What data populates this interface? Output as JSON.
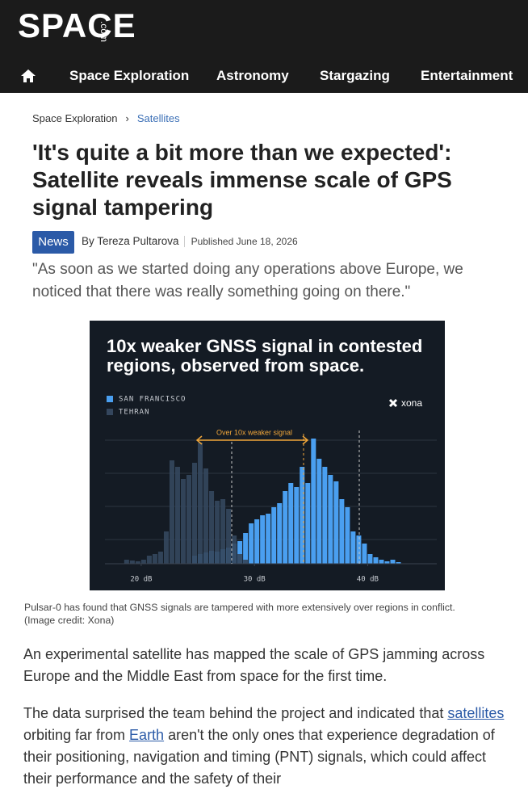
{
  "header": {
    "logo": "SPACE",
    "logo_suffix": ".com",
    "nav": [
      "Space Exploration",
      "Astronomy",
      "Stargazing",
      "Entertainment"
    ]
  },
  "breadcrumb": [
    "Space Exploration",
    "Satellites"
  ],
  "article": {
    "title": "'It's quite a bit more than we expected': Satellite reveals immense scale of GPS signal tampering",
    "tag": "News",
    "author": "By Tereza Pultarova",
    "published": "Published June 18, 2026",
    "standfirst": "\"As soon as we started doing any operations above Europe, we noticed that there was really something going on there.\"",
    "figure": {
      "chart_data": {
        "type": "histogram",
        "title": "10x weaker GNSS signal in contested regions, observed from space.",
        "brand": "xona",
        "annotation": "Over 10x weaker signal",
        "bins": [
          18,
          18.5,
          19,
          19.5,
          20,
          20.5,
          21,
          21.5,
          22,
          22.5,
          23,
          23.5,
          24,
          24.5,
          25,
          25.5,
          26,
          26.5,
          27,
          27.5,
          28,
          28.5,
          29,
          29.5,
          30,
          30.5,
          31,
          31.5,
          32,
          32.5,
          33,
          33.5,
          34,
          34.5,
          35,
          35.5,
          36,
          36.5,
          37,
          37.5,
          38,
          38.5,
          39,
          39.5,
          40,
          40.5,
          41,
          41.5,
          42,
          42.5,
          43,
          43.5
        ],
        "series": [
          {
            "name": "SAN FRANCISCO",
            "color": "#4a9ff0",
            "values": [
              0,
              0,
              0,
              0,
              0,
              0,
              0,
              0,
              0,
              0,
              0,
              0,
              0,
              10,
              12,
              14,
              16,
              15,
              18,
              20,
              25,
              28,
              38,
              50,
              55,
              60,
              62,
              70,
              75,
              90,
              100,
              95,
              120,
              100,
              155,
              130,
              120,
              110,
              102,
              80,
              70,
              40,
              35,
              25,
              12,
              8,
              5,
              3,
              5,
              2,
              0
            ]
          },
          {
            "name": "TEHRAN",
            "color": "#34465d",
            "values": [
              0,
              5,
              4,
              3,
              5,
              10,
              12,
              15,
              40,
              128,
              120,
              105,
              110,
              125,
              150,
              118,
              90,
              78,
              80,
              68,
              35,
              12,
              5,
              0,
              0,
              0,
              0,
              0,
              0,
              0,
              0,
              0,
              0,
              0,
              0,
              0,
              0,
              0,
              0,
              0,
              0,
              0,
              0,
              0,
              0,
              0,
              0,
              0,
              0,
              0,
              0
            ]
          }
        ],
        "xlim": [
          16.8,
          46.1
        ],
        "xticks": [
          {
            "value": 20,
            "label": "20 dB"
          },
          {
            "value": 30,
            "label": "30 dB"
          },
          {
            "value": 40,
            "label": "40 dB"
          }
        ]
      },
      "caption": "Pulsar-0 has found that GNSS signals are tampered with more extensively over regions in conflict.",
      "credit": "(Image credit: Xona)"
    },
    "paragraphs": [
      [
        "An experimental satellite has mapped the scale of GPS jamming across Europe and the Middle East from space for the first time."
      ],
      [
        "The data surprised the team behind the project and indicated that ",
        "satellites",
        " orbiting far from ",
        "Earth",
        " aren't the only ones that experience degradation of their positioning, navigation and timing (PNT) signals, which could affect their performance and the safety of their"
      ]
    ]
  }
}
